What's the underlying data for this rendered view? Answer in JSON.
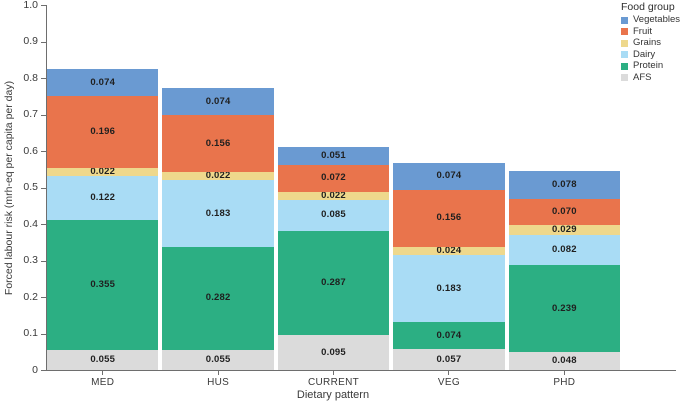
{
  "chart_data": {
    "type": "bar",
    "stacked": true,
    "title": "",
    "xlabel": "Dietary pattern",
    "ylabel": "Forced labour risk (mrh-eq per capita per day)",
    "legend_title": "Food group",
    "legend_position": "right-top",
    "grid": false,
    "value_labels": true,
    "value_label_decimals": 3,
    "ylim": [
      0,
      1.0
    ],
    "y_ticks": [
      "1.0",
      "0.9",
      "0.8",
      "0.7",
      "0.6",
      "0.5",
      "0.4",
      "0.3",
      "0.2",
      "0.1",
      "0"
    ],
    "categories": [
      "MED",
      "HUS",
      "CURRENT",
      "VEG",
      "PHD"
    ],
    "series_bottom_to_top": [
      {
        "name": "AFS",
        "color": "#dbdbdb",
        "values": [
          0.055,
          0.055,
          0.095,
          0.057,
          0.048
        ]
      },
      {
        "name": "Protein",
        "color": "#2caf83",
        "values": [
          0.355,
          0.282,
          0.287,
          0.074,
          0.239
        ]
      },
      {
        "name": "Dairy",
        "color": "#a9dcf5",
        "values": [
          0.122,
          0.183,
          0.085,
          0.183,
          0.082
        ]
      },
      {
        "name": "Grains",
        "color": "#eed88c",
        "values": [
          0.022,
          0.022,
          0.022,
          0.024,
          0.029
        ]
      },
      {
        "name": "Fruit",
        "color": "#e9744c",
        "values": [
          0.196,
          0.156,
          0.072,
          0.156,
          0.07
        ]
      },
      {
        "name": "Vegetables",
        "color": "#6a9ad2",
        "values": [
          0.074,
          0.074,
          0.051,
          0.074,
          0.078
        ]
      }
    ],
    "legend_order_top_to_bottom": [
      "Vegetables",
      "Fruit",
      "Grains",
      "Dairy",
      "Protein",
      "AFS"
    ],
    "bar_totals": [
      0.824,
      0.772,
      0.612,
      0.568,
      0.546
    ],
    "axis_color": "#6e6e6e",
    "text_color": "#3a3a3a"
  }
}
